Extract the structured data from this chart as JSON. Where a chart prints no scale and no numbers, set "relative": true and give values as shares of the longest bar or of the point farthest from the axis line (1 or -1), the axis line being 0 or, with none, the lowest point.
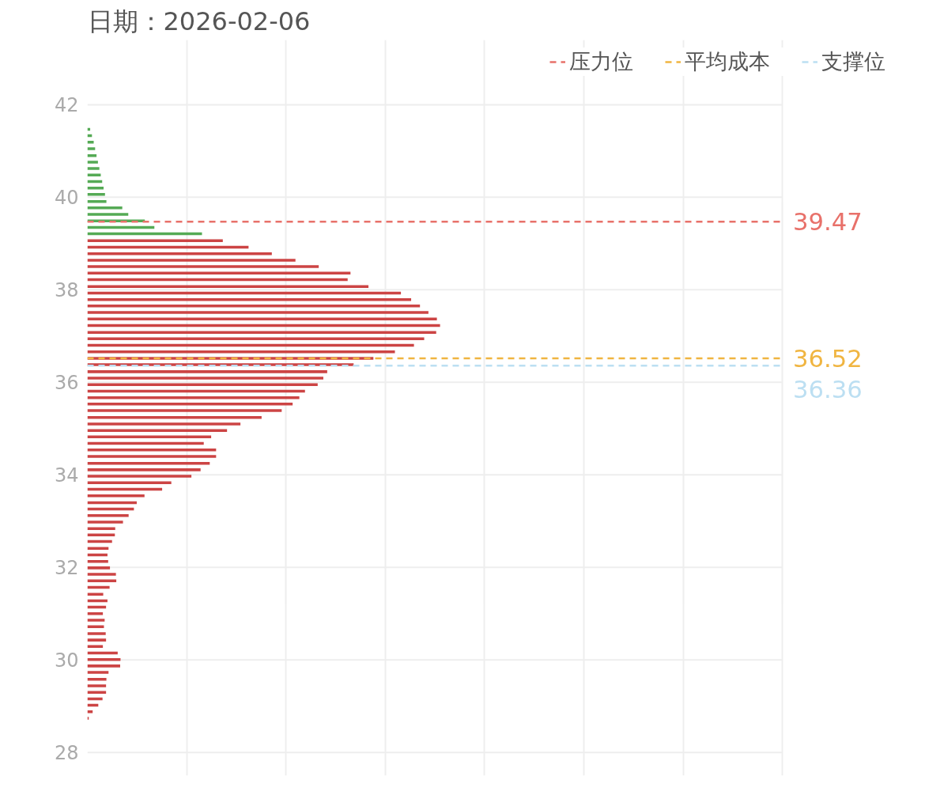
{
  "chart_data": {
    "type": "bar",
    "orientation": "horizontal",
    "relative": true,
    "title": "日期：2026-02-06",
    "series": [
      {
        "color": "#55aa55",
        "x": [
          41.47,
          41.33,
          41.19,
          41.05,
          40.9,
          40.76,
          40.62,
          40.48,
          40.34,
          40.2,
          40.06,
          39.91,
          39.77,
          39.63,
          39.49,
          39.35,
          39.21
        ],
        "values": [
          0.008,
          0.013,
          0.018,
          0.022,
          0.026,
          0.03,
          0.034,
          0.038,
          0.042,
          0.046,
          0.05,
          0.054,
          0.099,
          0.116,
          0.163,
          0.19,
          0.325
        ]
      },
      {
        "color": "#cc4444",
        "x": [
          39.06,
          38.92,
          38.78,
          38.64,
          38.5,
          38.36,
          38.22,
          38.07,
          37.93,
          37.79,
          37.65,
          37.51,
          37.37,
          37.23,
          37.08,
          36.94,
          36.8,
          36.66,
          36.52,
          36.38,
          36.23,
          36.09,
          35.95,
          35.81,
          35.67,
          35.53,
          35.39,
          35.24,
          35.1,
          34.96,
          34.82,
          34.68,
          34.54,
          34.4,
          34.25,
          34.11,
          33.97,
          33.83,
          33.69,
          33.55,
          33.4,
          33.26,
          33.12,
          32.98,
          32.84,
          32.7,
          32.56,
          32.41,
          32.27,
          32.13,
          31.99,
          31.85,
          31.71,
          31.57,
          31.42,
          31.28,
          31.14,
          31.0,
          30.86,
          30.72,
          30.57,
          30.43,
          30.29,
          30.15,
          30.01,
          29.87,
          29.73,
          29.58,
          29.44,
          29.3,
          29.16,
          29.02,
          28.88,
          28.74
        ],
        "values": [
          0.384,
          0.457,
          0.523,
          0.59,
          0.656,
          0.746,
          0.738,
          0.797,
          0.889,
          0.918,
          0.943,
          0.967,
          0.991,
          1,
          0.989,
          0.955,
          0.926,
          0.872,
          0.811,
          0.755,
          0.68,
          0.669,
          0.653,
          0.617,
          0.601,
          0.582,
          0.551,
          0.494,
          0.434,
          0.396,
          0.351,
          0.33,
          0.365,
          0.365,
          0.347,
          0.321,
          0.295,
          0.238,
          0.212,
          0.162,
          0.14,
          0.132,
          0.117,
          0.101,
          0.079,
          0.078,
          0.07,
          0.06,
          0.057,
          0.059,
          0.064,
          0.081,
          0.082,
          0.063,
          0.045,
          0.057,
          0.053,
          0.044,
          0.049,
          0.047,
          0.052,
          0.053,
          0.044,
          0.086,
          0.094,
          0.093,
          0.06,
          0.054,
          0.053,
          0.053,
          0.043,
          0.031,
          0.015,
          0.004
        ]
      }
    ],
    "ylim": [
      27.5,
      43.4
    ],
    "yticks": [
      28,
      30,
      32,
      34,
      36,
      38,
      40,
      42
    ],
    "grid": true,
    "legend": "top right",
    "annotations": [
      "39.47",
      "36.52",
      "36.36"
    ],
    "ref_lines": [
      {
        "axis": "y",
        "value": 39.47,
        "label": "压力位",
        "color": "#e8716a",
        "line_style": "dashed"
      },
      {
        "axis": "y",
        "value": 36.52,
        "label": "平均成本",
        "color": "#f0b541",
        "line_style": "dashed"
      },
      {
        "axis": "y",
        "value": 36.36,
        "label": "支撑位",
        "color": "#bcdff2",
        "line_style": "dashed"
      }
    ]
  }
}
